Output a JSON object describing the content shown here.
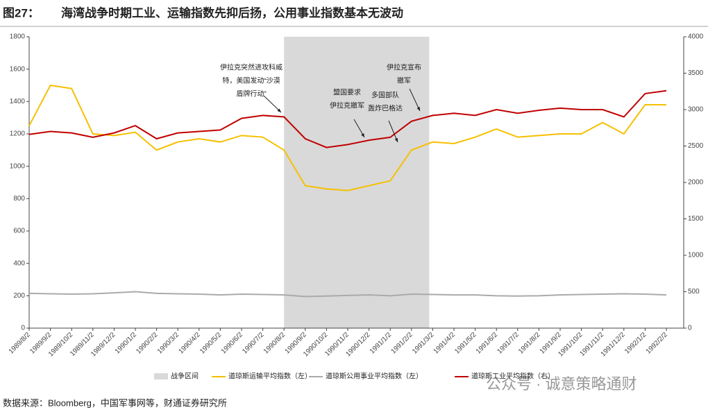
{
  "chart_data": {
    "type": "line",
    "title_label": "图27：",
    "title": "海湾战争时期工业、运输指数先抑后扬，公用事业指数基本无波动",
    "source": "数据来源：Bloomberg，中国军事网等，财通证券研究所",
    "watermark": "公众号 · 诚意策略通财",
    "categories": [
      "1989/8/2",
      "1989/9/2",
      "1989/10/2",
      "1989/11/2",
      "1989/12/2",
      "1990/1/2",
      "1990/2/2",
      "1990/3/2",
      "1990/4/2",
      "1990/5/2",
      "1990/6/2",
      "1990/7/2",
      "1990/8/2",
      "1990/9/2",
      "1990/10/2",
      "1990/11/2",
      "1990/12/2",
      "1991/1/2",
      "1991/2/2",
      "1991/3/2",
      "1991/4/2",
      "1991/5/2",
      "1991/6/2",
      "1991/7/2",
      "1991/8/2",
      "1991/9/2",
      "1991/10/2",
      "1991/11/2",
      "1991/12/2",
      "1992/1/2",
      "1992/2/2"
    ],
    "shade": {
      "name": "战争区间",
      "color": "#d9d9d9",
      "from": "1990/8/2",
      "to": "1991/3/2"
    },
    "series": [
      {
        "name": "道琼斯运输平均指数（左）",
        "color": "#f5c000",
        "axis": "y",
        "values": [
          1250,
          1500,
          1480,
          1200,
          1190,
          1210,
          1100,
          1150,
          1170,
          1150,
          1190,
          1180,
          1100,
          880,
          860,
          850,
          880,
          910,
          1100,
          1150,
          1140,
          1180,
          1230,
          1180,
          1190,
          1200,
          1200,
          1270,
          1200,
          1380,
          1380
        ]
      },
      {
        "name": "道琼斯公用事业平均指数（左）",
        "color": "#aaaaaa",
        "axis": "y",
        "values": [
          215,
          212,
          210,
          212,
          218,
          225,
          215,
          212,
          210,
          205,
          210,
          208,
          205,
          195,
          198,
          202,
          205,
          200,
          210,
          208,
          205,
          205,
          200,
          198,
          200,
          205,
          208,
          210,
          212,
          210,
          205
        ]
      },
      {
        "name": "道琼斯工业平均指数（右）",
        "color": "#c00000",
        "axis": "y2",
        "values": [
          2660,
          2700,
          2680,
          2620,
          2680,
          2780,
          2600,
          2680,
          2700,
          2720,
          2880,
          2920,
          2900,
          2600,
          2480,
          2520,
          2580,
          2620,
          2840,
          2920,
          2950,
          2920,
          3000,
          2950,
          2990,
          3020,
          3000,
          3000,
          2900,
          3220,
          3260
        ]
      }
    ],
    "ylim": [
      0,
      1800
    ],
    "yticks": [
      0,
      200,
      400,
      600,
      800,
      1000,
      1200,
      1400,
      1600,
      1800
    ],
    "y2lim": [
      0,
      4000
    ],
    "y2ticks": [
      0,
      500,
      1000,
      1500,
      2000,
      2500,
      3000,
      3500,
      4000
    ],
    "annotations": [
      {
        "lines": [
          "伊拉克突然进攻科威",
          "特，美国发动“沙漠",
          "盾牌行动”"
        ]
      },
      {
        "lines": [
          "盟国要求",
          "伊拉克撤军"
        ]
      },
      {
        "lines": [
          "多国部队",
          "轰炸巴格达"
        ]
      },
      {
        "lines": [
          "伊拉克宣布",
          "撤军"
        ]
      }
    ]
  }
}
